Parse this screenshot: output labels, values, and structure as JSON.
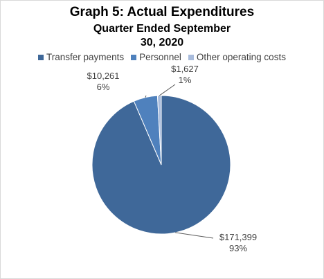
{
  "chart_data": {
    "type": "pie",
    "title": "Graph 5: Actual Expenditures",
    "subtitle_lines": [
      "Quarter Ended September",
      "30, 2020"
    ],
    "legend_placement": "top",
    "slices": [
      {
        "name": "Transfer payments",
        "value": 171399,
        "value_label": "$171,399",
        "percent_label": "93%",
        "color": "#3f6899"
      },
      {
        "name": "Personnel",
        "value": 10261,
        "value_label": "$10,261",
        "percent_label": "6%",
        "color": "#4f81bd"
      },
      {
        "name": "Other operating costs",
        "value": 1627,
        "value_label": "$1,627",
        "percent_label": "1%",
        "color": "#a9bcdc"
      }
    ]
  }
}
